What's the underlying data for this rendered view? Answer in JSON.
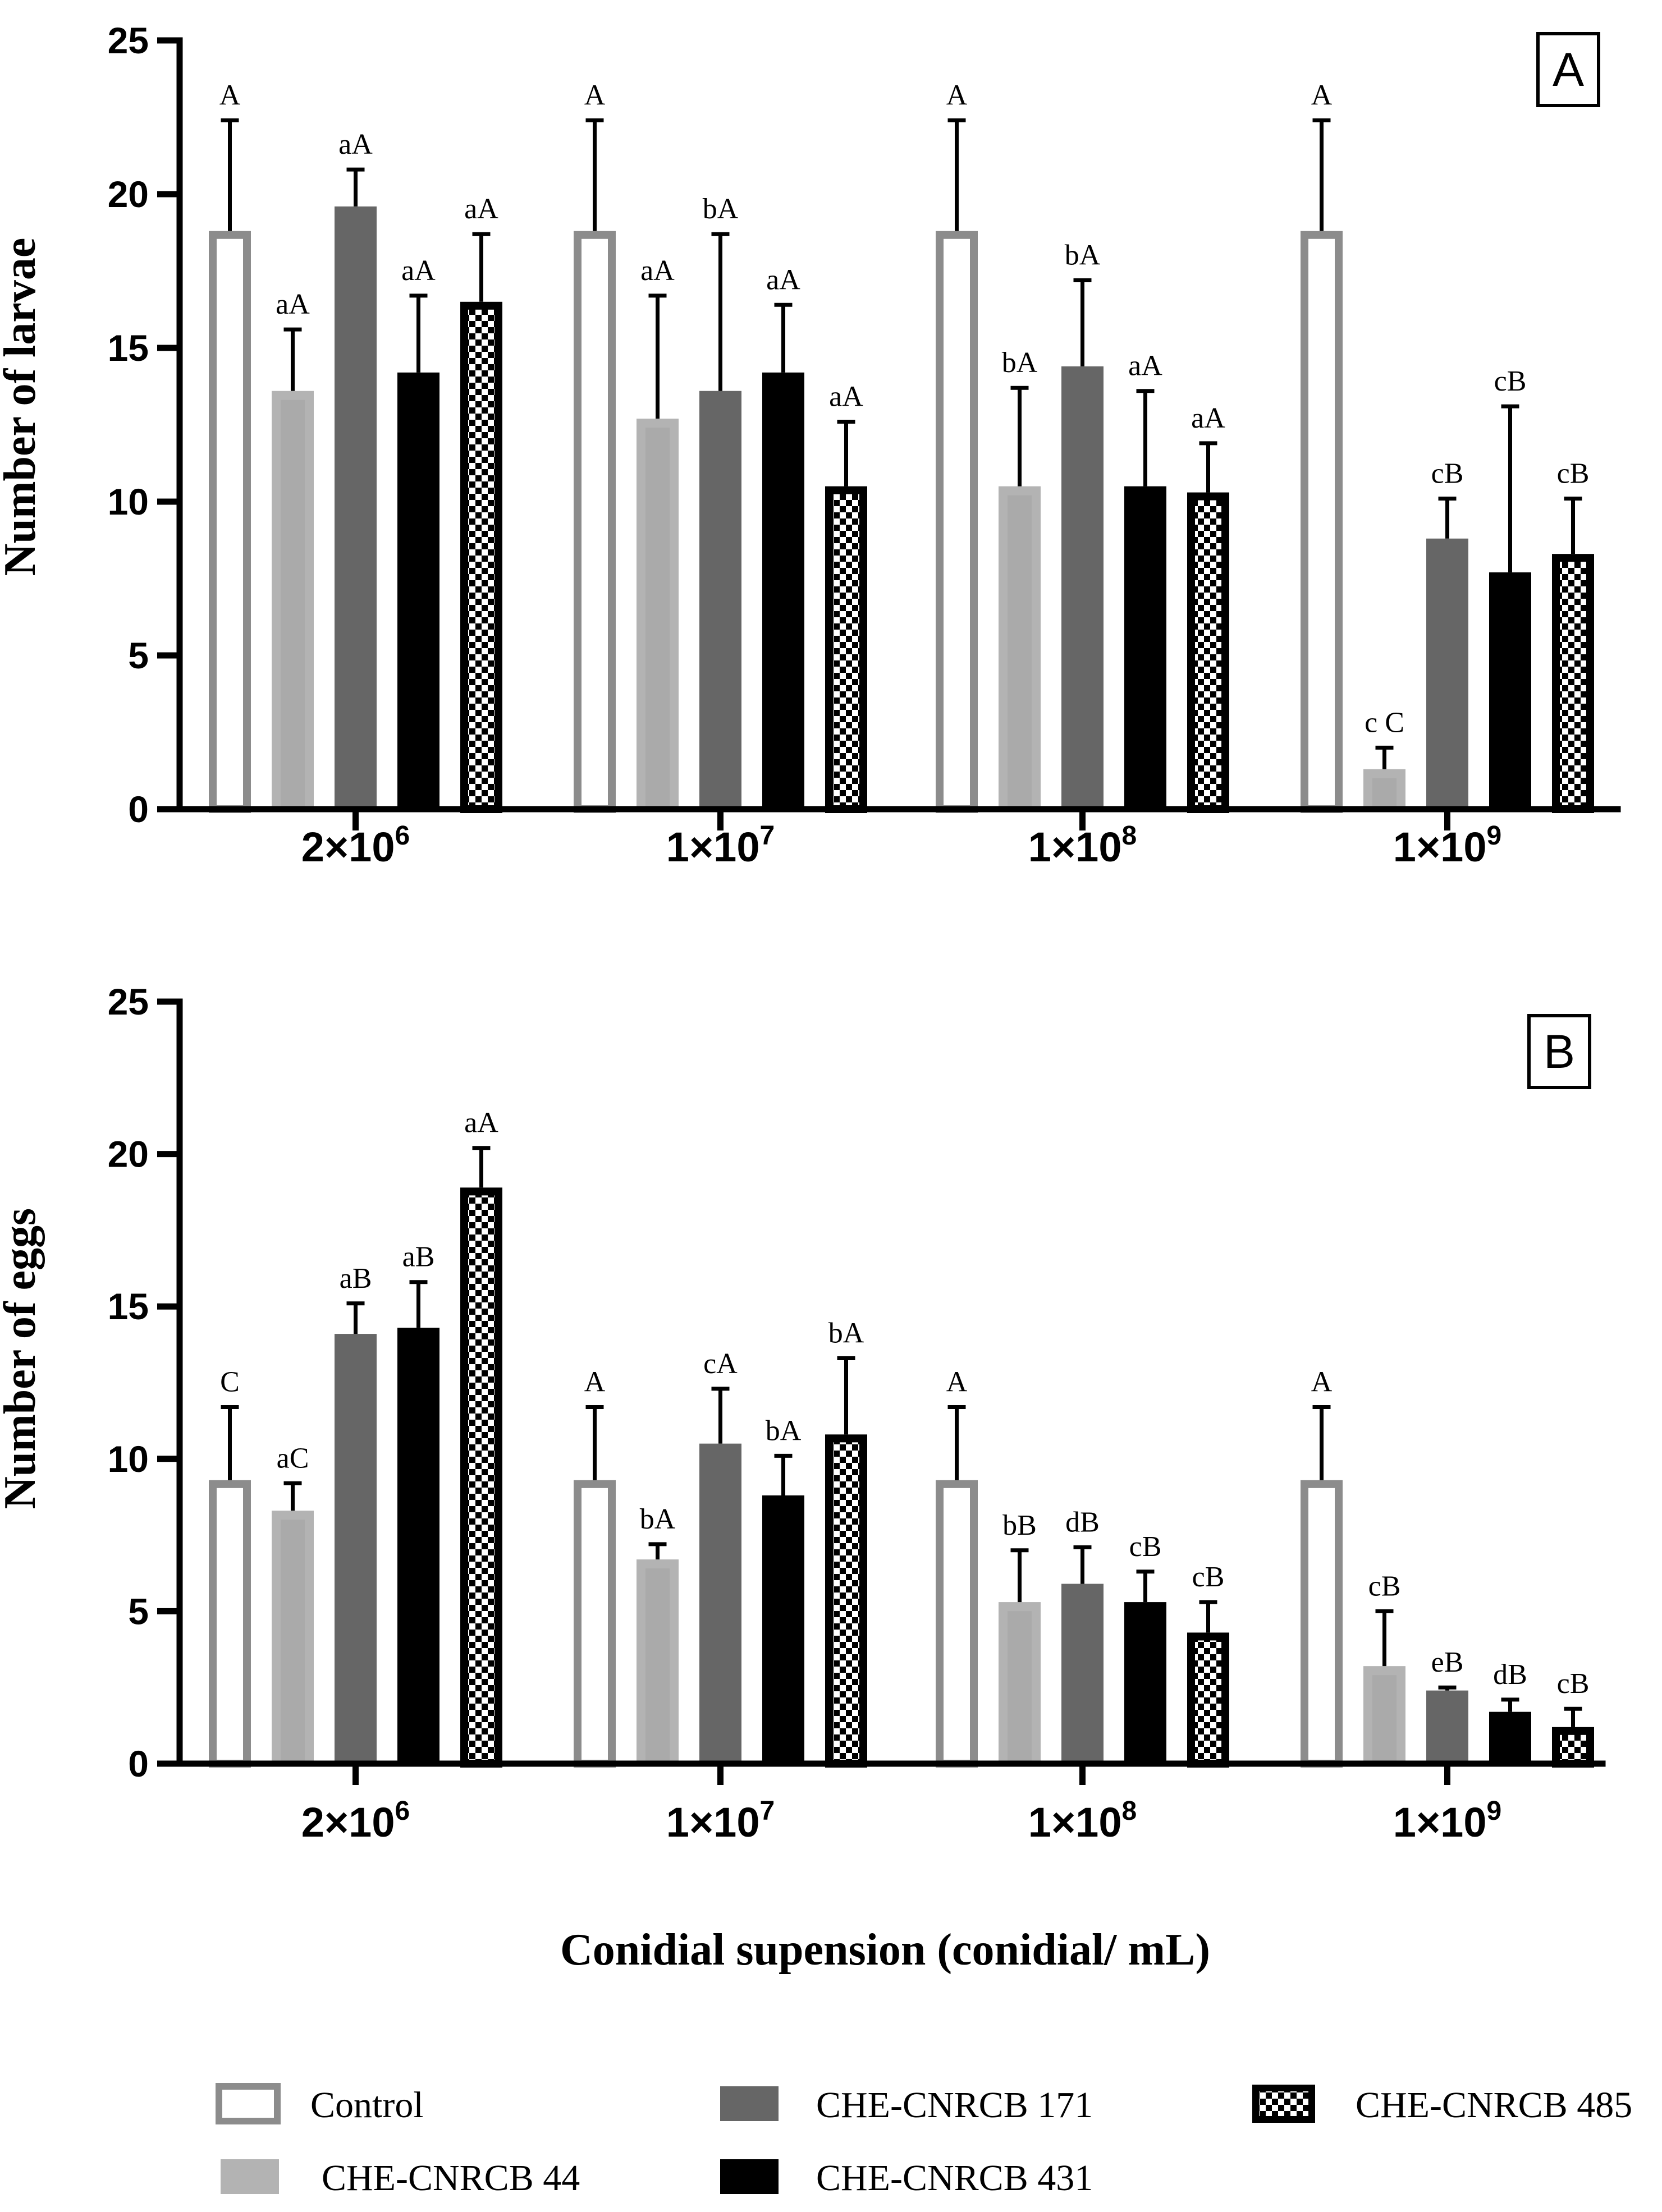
{
  "chart_data": [
    {
      "panel": "A",
      "type": "bar",
      "ylabel": "Number of larvae",
      "ylim": [
        0,
        25
      ],
      "yticks": [
        0,
        5,
        10,
        15,
        20,
        25
      ],
      "categories": [
        "2×10^6",
        "1×10^7",
        "1×10^8",
        "1×10^9"
      ],
      "series": [
        {
          "name": "Control",
          "values": [
            18.8,
            18.8,
            18.8,
            18.8
          ],
          "errors": [
            3.6,
            3.6,
            3.6,
            3.6
          ],
          "labels": [
            "A",
            "A",
            "A",
            "A"
          ]
        },
        {
          "name": "CHE-CNRCB 44",
          "values": [
            13.6,
            12.7,
            10.5,
            1.3
          ],
          "errors": [
            2.0,
            4.0,
            3.2,
            0.7
          ],
          "labels": [
            "aA",
            "aA",
            "bA",
            "c C"
          ]
        },
        {
          "name": "CHE-CNRCB 171",
          "values": [
            19.6,
            13.6,
            14.4,
            8.8
          ],
          "errors": [
            1.2,
            5.1,
            2.8,
            1.3
          ],
          "labels": [
            "aA",
            "bA",
            "bA",
            "cB"
          ]
        },
        {
          "name": "CHE-CNRCB 431",
          "values": [
            14.2,
            14.2,
            10.5,
            7.7
          ],
          "errors": [
            2.5,
            2.2,
            3.1,
            5.4
          ],
          "labels": [
            "aA",
            "aA",
            "aA",
            "cB"
          ]
        },
        {
          "name": "CHE-CNRCB 485",
          "values": [
            16.5,
            10.5,
            10.3,
            8.3
          ],
          "errors": [
            2.2,
            2.1,
            1.6,
            1.8
          ],
          "labels": [
            "aA",
            "aA",
            "aA",
            "cB"
          ]
        }
      ]
    },
    {
      "panel": "B",
      "type": "bar",
      "ylabel": "Number of eggs",
      "ylim": [
        0,
        25
      ],
      "yticks": [
        0,
        5,
        10,
        15,
        20,
        25
      ],
      "categories": [
        "2×10^6",
        "1×10^7",
        "1×10^8",
        "1×10^9"
      ],
      "series": [
        {
          "name": "Control",
          "values": [
            9.3,
            9.3,
            9.3,
            9.3
          ],
          "errors": [
            2.4,
            2.4,
            2.4,
            2.4
          ],
          "labels": [
            "C",
            "A",
            "A",
            "A"
          ]
        },
        {
          "name": "CHE-CNRCB 44",
          "values": [
            8.3,
            6.7,
            5.3,
            3.2
          ],
          "errors": [
            0.9,
            0.5,
            1.7,
            1.8
          ],
          "labels": [
            "aC",
            "bA",
            "bB",
            "cB"
          ]
        },
        {
          "name": "CHE-CNRCB 171",
          "values": [
            14.1,
            10.5,
            5.9,
            2.4
          ],
          "errors": [
            1.0,
            1.8,
            1.2,
            0.1
          ],
          "labels": [
            "aB",
            "cA",
            "dB",
            "eB"
          ]
        },
        {
          "name": "CHE-CNRCB 431",
          "values": [
            14.3,
            8.8,
            5.3,
            1.7
          ],
          "errors": [
            1.5,
            1.3,
            1.0,
            0.4
          ],
          "labels": [
            "aB",
            "bA",
            "cB",
            "dB"
          ]
        },
        {
          "name": "CHE-CNRCB 485",
          "values": [
            18.9,
            10.8,
            4.3,
            1.2
          ],
          "errors": [
            1.3,
            2.5,
            1.0,
            0.6
          ],
          "labels": [
            "aA",
            "bA",
            "cB",
            "cB"
          ]
        }
      ]
    }
  ],
  "xlabel": "Conidial supension (conidial/ mL)",
  "category_ticks": [
    {
      "base": "2×10",
      "exp": "6"
    },
    {
      "base": "1×10",
      "exp": "7"
    },
    {
      "base": "1×10",
      "exp": "8"
    },
    {
      "base": "1×10",
      "exp": "9"
    }
  ],
  "legend": [
    "Control",
    "CHE-CNRCB 44",
    "CHE-CNRCB 171",
    "CHE-CNRCB 431",
    "CHE-CNRCB 485"
  ],
  "colors": {
    "control_outline": "#8c8c8c",
    "strain_44": "#b3b3b3",
    "strain_44_shade": "#9a9a9a",
    "strain_171": "#666666",
    "strain_431": "#000000",
    "strain_485_check": "#000000"
  }
}
